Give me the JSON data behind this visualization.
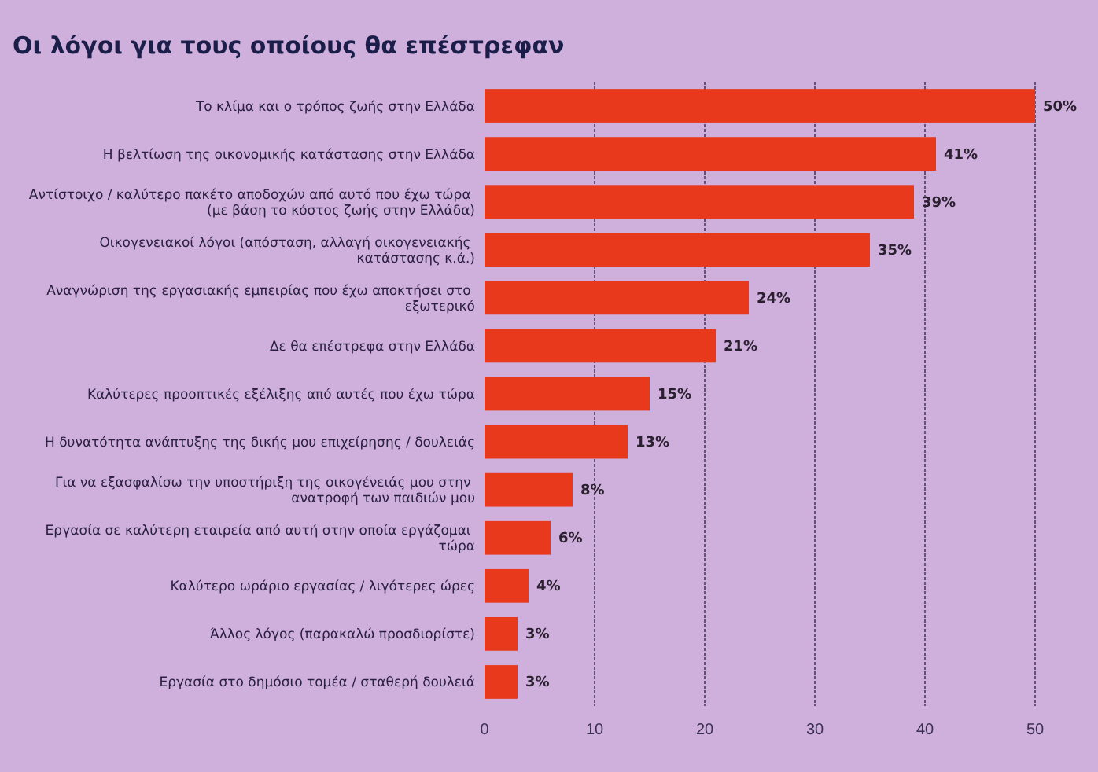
{
  "chart_data": {
    "type": "bar",
    "orientation": "horizontal",
    "title": "Οι λόγοι για τους οποίους θα επέστρεφαν",
    "categories": [
      "Το κλίμα και ο τρόπος ζωής στην Ελλάδα",
      "Η βελτίωση της οικονομικής κατάστασης στην Ελλάδα",
      "Αντίστοιχο / καλύτερο πακέτο αποδοχών από αυτό που έχω τώρα (με βάση το κόστος ζωής στην Ελλάδα)",
      "Οικογενειακοί λόγοι (απόσταση, αλλαγή οικογενειακής κατάστασης κ.ά.)",
      "Αναγνώριση της εργασιακής εμπειρίας που έχω αποκτήσει στο εξωτερικό",
      "Δε θα επέστρεφα στην Ελλάδα",
      "Καλύτερες προοπτικές εξέλιξης από αυτές που έχω τώρα",
      "Η δυνατότητα ανάπτυξης της δικής μου επιχείρησης / δουλειάς",
      "Για να εξασφαλίσω την υποστήριξη της οικογένειάς μου στην ανατροφή των παιδιών μου",
      "Εργασία σε καλύτερη εταιρεία από αυτή στην οποία εργάζομαι τώρα",
      "Καλύτερο ωράριο εργασίας / λιγότερες ώρες",
      "Άλλος λόγος (παρακαλώ προσδιορίστε)",
      "Εργασία στο δημόσιο τομέα / σταθερή δουλειά"
    ],
    "values": [
      50,
      41,
      39,
      35,
      24,
      21,
      15,
      13,
      8,
      6,
      4,
      3,
      3
    ],
    "value_labels": [
      "50%",
      "41%",
      "39%",
      "35%",
      "24%",
      "21%",
      "15%",
      "13%",
      "8%",
      "6%",
      "4%",
      "3%",
      "3%"
    ],
    "color": "#e8391c",
    "xlim": [
      0,
      50
    ],
    "xticks": [
      0,
      10,
      20,
      30,
      40,
      50
    ],
    "grid": "x"
  }
}
